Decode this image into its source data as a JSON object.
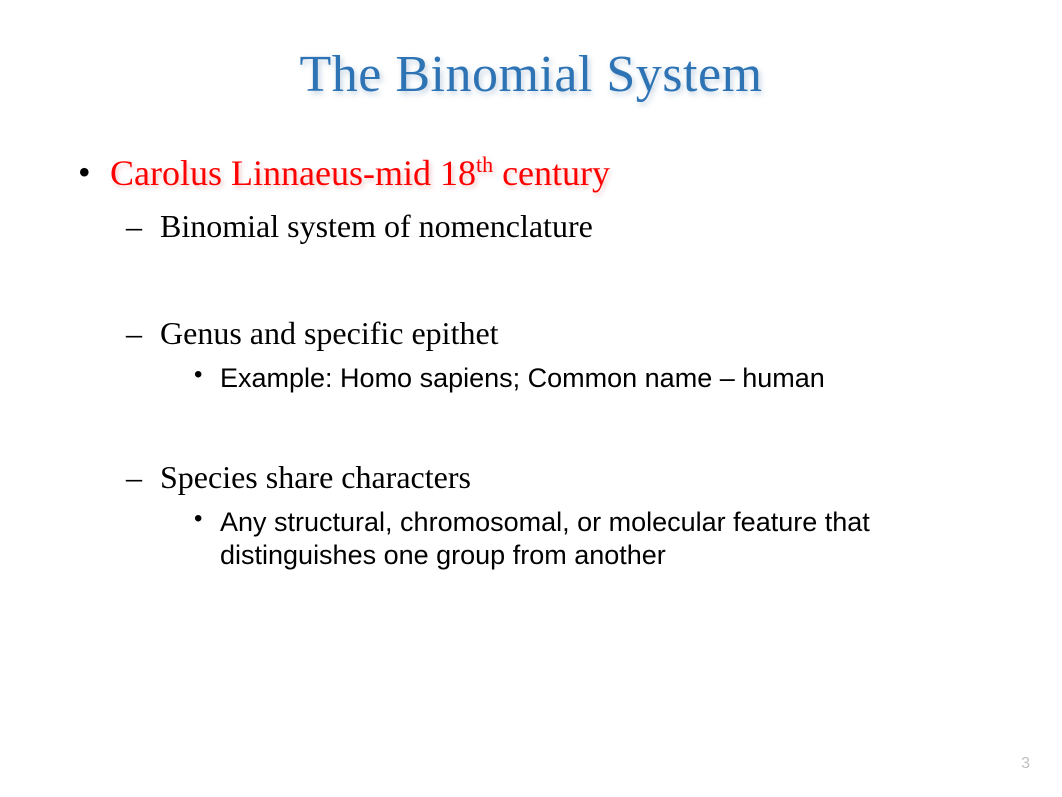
{
  "slide": {
    "title": "The Binomial System",
    "title_color": "#2e74b5",
    "title_fontsize": 52,
    "bullet_level1": {
      "text_before_sup": "Carolus Linnaeus-mid 18",
      "sup": "th",
      "text_after_sup": " century",
      "color": "#ff0000",
      "fontsize": 36
    },
    "sub_items": [
      {
        "level2": "Binomial system of nomenclature",
        "level3": null,
        "gap_after": true
      },
      {
        "level2": "Genus and specific epithet",
        "level3": "Example: Homo sapiens; Common name – human",
        "gap_after": true
      },
      {
        "level2": "Species share characters",
        "level3": "Any structural, chromosomal, or molecular feature that distinguishes one group from another",
        "gap_after": false
      }
    ],
    "level2_color": "#000000",
    "level2_fontsize": 32,
    "level3_color": "#000000",
    "level3_fontsize": 27,
    "page_number": "3",
    "page_number_color": "#bfbfbf",
    "background_color": "#ffffff"
  }
}
